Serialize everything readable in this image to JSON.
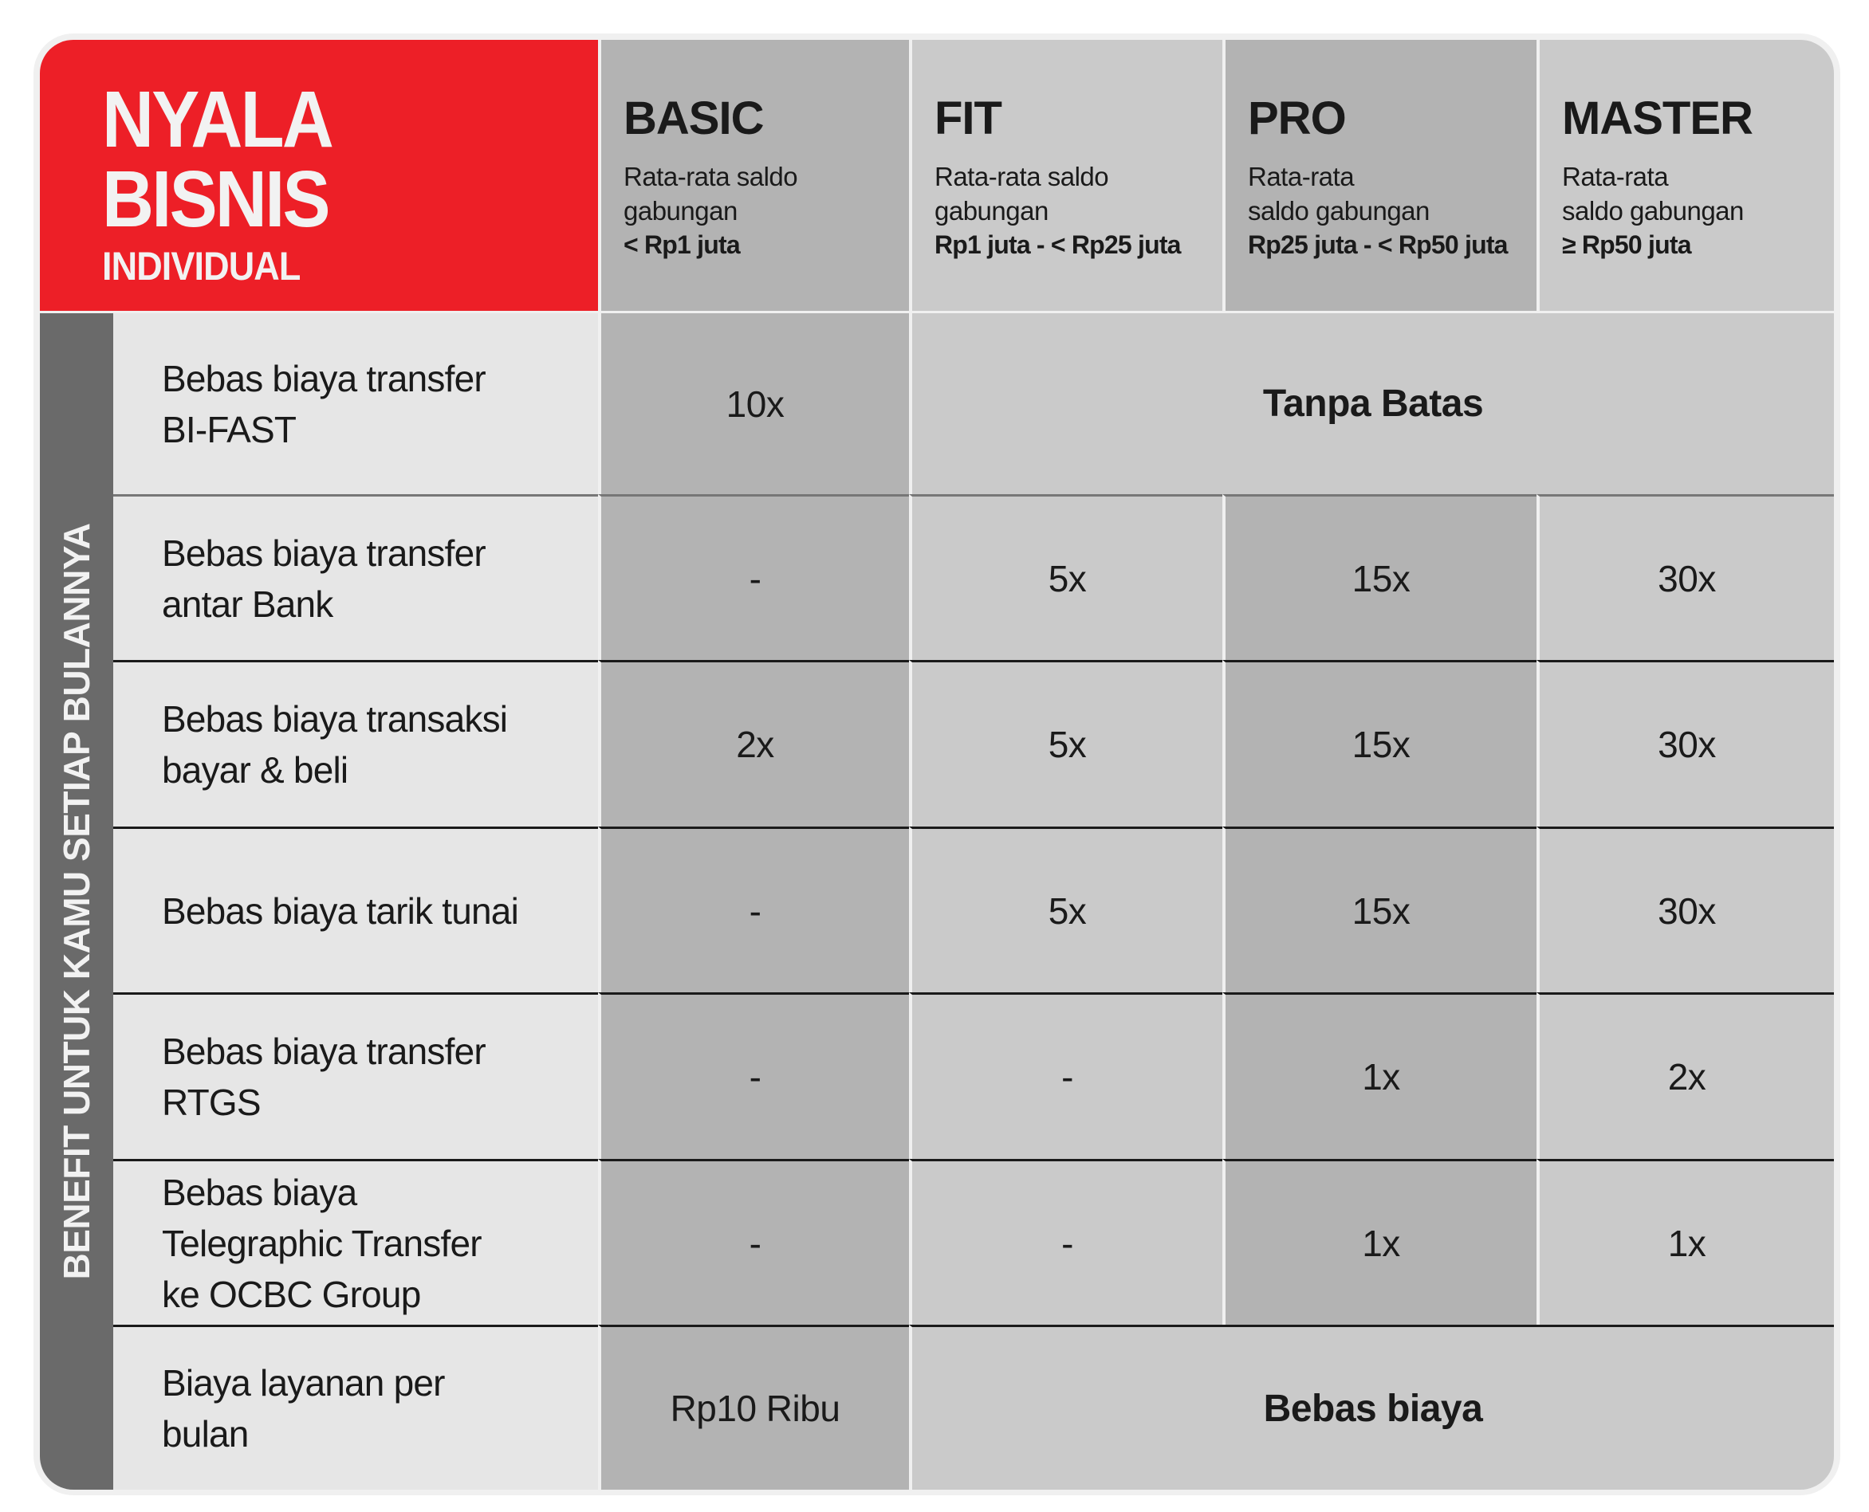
{
  "brand": {
    "title_line1": "NYALA",
    "title_line2": "BISNIS",
    "subtitle": "INDIVIDUAL",
    "color": "#ed1f27"
  },
  "side_label": "BENEFIT UNTUK KAMU SETIAP BULANNYA",
  "tiers": [
    {
      "name": "BASIC",
      "desc": "Rata-rata saldo\ngabungan",
      "range": "< Rp1 juta",
      "shade": "dark"
    },
    {
      "name": "FIT",
      "desc": "Rata-rata saldo\ngabungan",
      "range": "Rp1 juta - < Rp25 juta",
      "shade": "light"
    },
    {
      "name": "PRO",
      "desc": "Rata-rata\nsaldo gabungan",
      "range": "Rp25 juta - < Rp50 juta",
      "shade": "dark"
    },
    {
      "name": "MASTER",
      "desc": "Rata-rata\nsaldo gabungan",
      "range": "≥ Rp50 juta",
      "shade": "light"
    }
  ],
  "rows": [
    {
      "label": "Bebas biaya transfer\nBI-FAST",
      "cells": [
        {
          "text": "10x"
        },
        {
          "text": "Tanpa Batas",
          "span": 3,
          "bold": true
        }
      ]
    },
    {
      "label": "Bebas biaya transfer\nantar Bank",
      "cells": [
        {
          "text": "-"
        },
        {
          "text": "5x"
        },
        {
          "text": "15x"
        },
        {
          "text": "30x"
        }
      ]
    },
    {
      "label": "Bebas biaya transaksi\nbayar & beli",
      "cells": [
        {
          "text": "2x"
        },
        {
          "text": "5x"
        },
        {
          "text": "15x"
        },
        {
          "text": "30x"
        }
      ]
    },
    {
      "label": "Bebas biaya tarik tunai",
      "cells": [
        {
          "text": "-"
        },
        {
          "text": "5x"
        },
        {
          "text": "15x"
        },
        {
          "text": "30x"
        }
      ]
    },
    {
      "label": "Bebas biaya transfer\nRTGS",
      "cells": [
        {
          "text": "-"
        },
        {
          "text": "-"
        },
        {
          "text": "1x"
        },
        {
          "text": "2x"
        }
      ]
    },
    {
      "label": "Bebas biaya\nTelegraphic Transfer\nke OCBC Group",
      "cells": [
        {
          "text": "-"
        },
        {
          "text": "-"
        },
        {
          "text": "1x"
        },
        {
          "text": "1x"
        }
      ]
    },
    {
      "label": "Biaya layanan per\nbulan",
      "cells": [
        {
          "text": "Rp10 Ribu"
        },
        {
          "text": "Bebas biaya",
          "span": 3,
          "bold": true
        }
      ]
    }
  ]
}
